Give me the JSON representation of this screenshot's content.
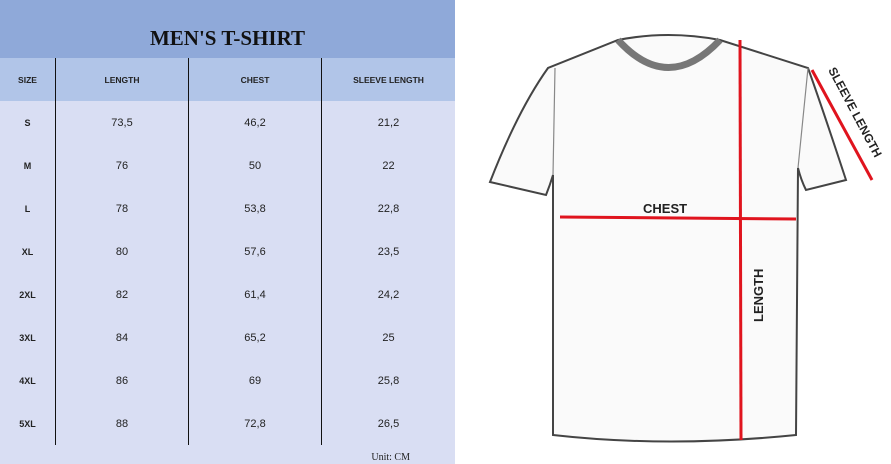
{
  "title": "MEN'S T-SHIRT",
  "headers": [
    "SIZE",
    "LENGTH",
    "CHEST",
    "SLEEVE LENGTH"
  ],
  "rows": [
    [
      "S",
      "73,5",
      "46,2",
      "21,2"
    ],
    [
      "M",
      "76",
      "50",
      "22"
    ],
    [
      "L",
      "78",
      "53,8",
      "22,8"
    ],
    [
      "XL",
      "80",
      "57,6",
      "23,5"
    ],
    [
      "2XL",
      "82",
      "61,4",
      "24,2"
    ],
    [
      "3XL",
      "84",
      "65,2",
      "25"
    ],
    [
      "4XL",
      "86",
      "69",
      "25,8"
    ],
    [
      "5XL",
      "88",
      "72,8",
      "26,5"
    ]
  ],
  "unit": "Unit: CM",
  "diagram": {
    "chest": "CHEST",
    "length": "LENGTH",
    "sleeve": "SLEEVE LENGTH",
    "line_color": "#e0141e"
  }
}
